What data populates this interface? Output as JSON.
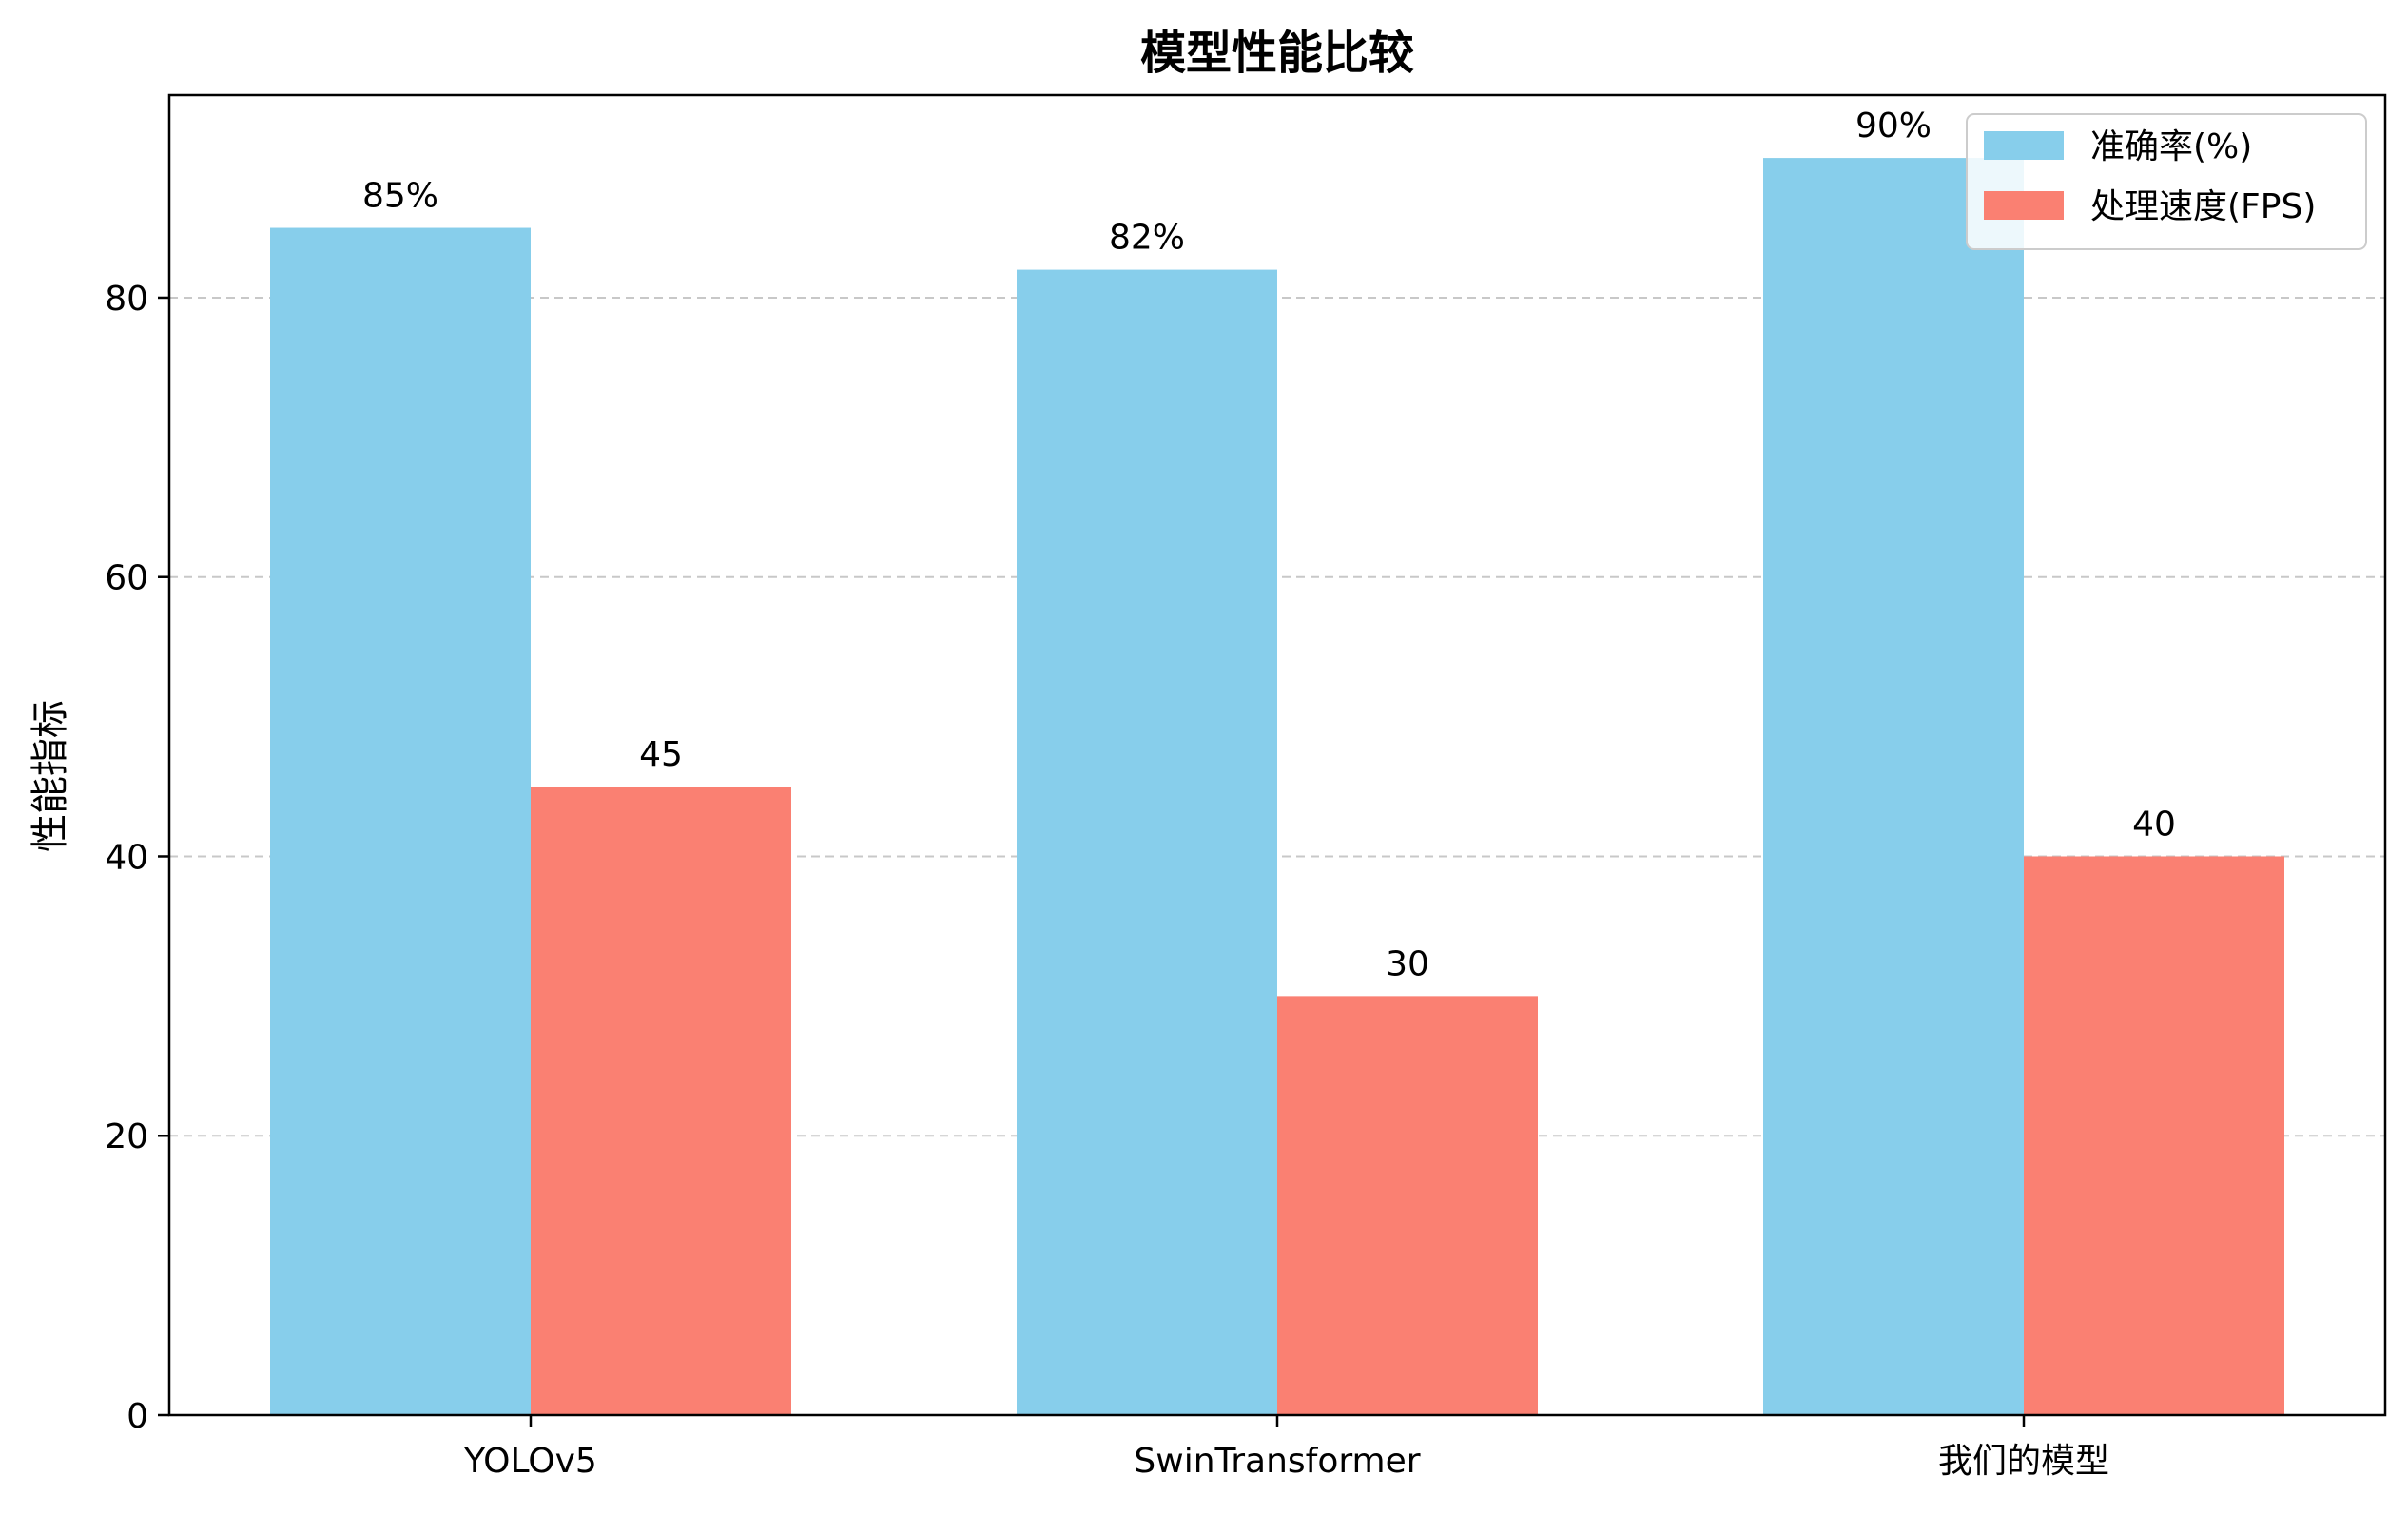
{
  "chart_data": {
    "type": "bar",
    "title": "模型性能比较",
    "xlabel": "",
    "ylabel": "性能指标",
    "categories": [
      "YOLOv5",
      "SwinTransformer",
      "我们的模型"
    ],
    "series": [
      {
        "name": "准确率(%)",
        "color": "#87CEEB",
        "values": [
          85,
          82,
          90
        ],
        "labels": [
          "85%",
          "82%",
          "90%"
        ]
      },
      {
        "name": "处理速度(FPS)",
        "color": "#FA8072",
        "values": [
          45,
          30,
          40
        ],
        "labels": [
          "45",
          "30",
          "40"
        ]
      }
    ],
    "ylim": [
      0,
      94.5
    ],
    "yticks": [
      0,
      20,
      40,
      60,
      80
    ],
    "grid": "y, dashed",
    "legend_position": "top-right"
  }
}
